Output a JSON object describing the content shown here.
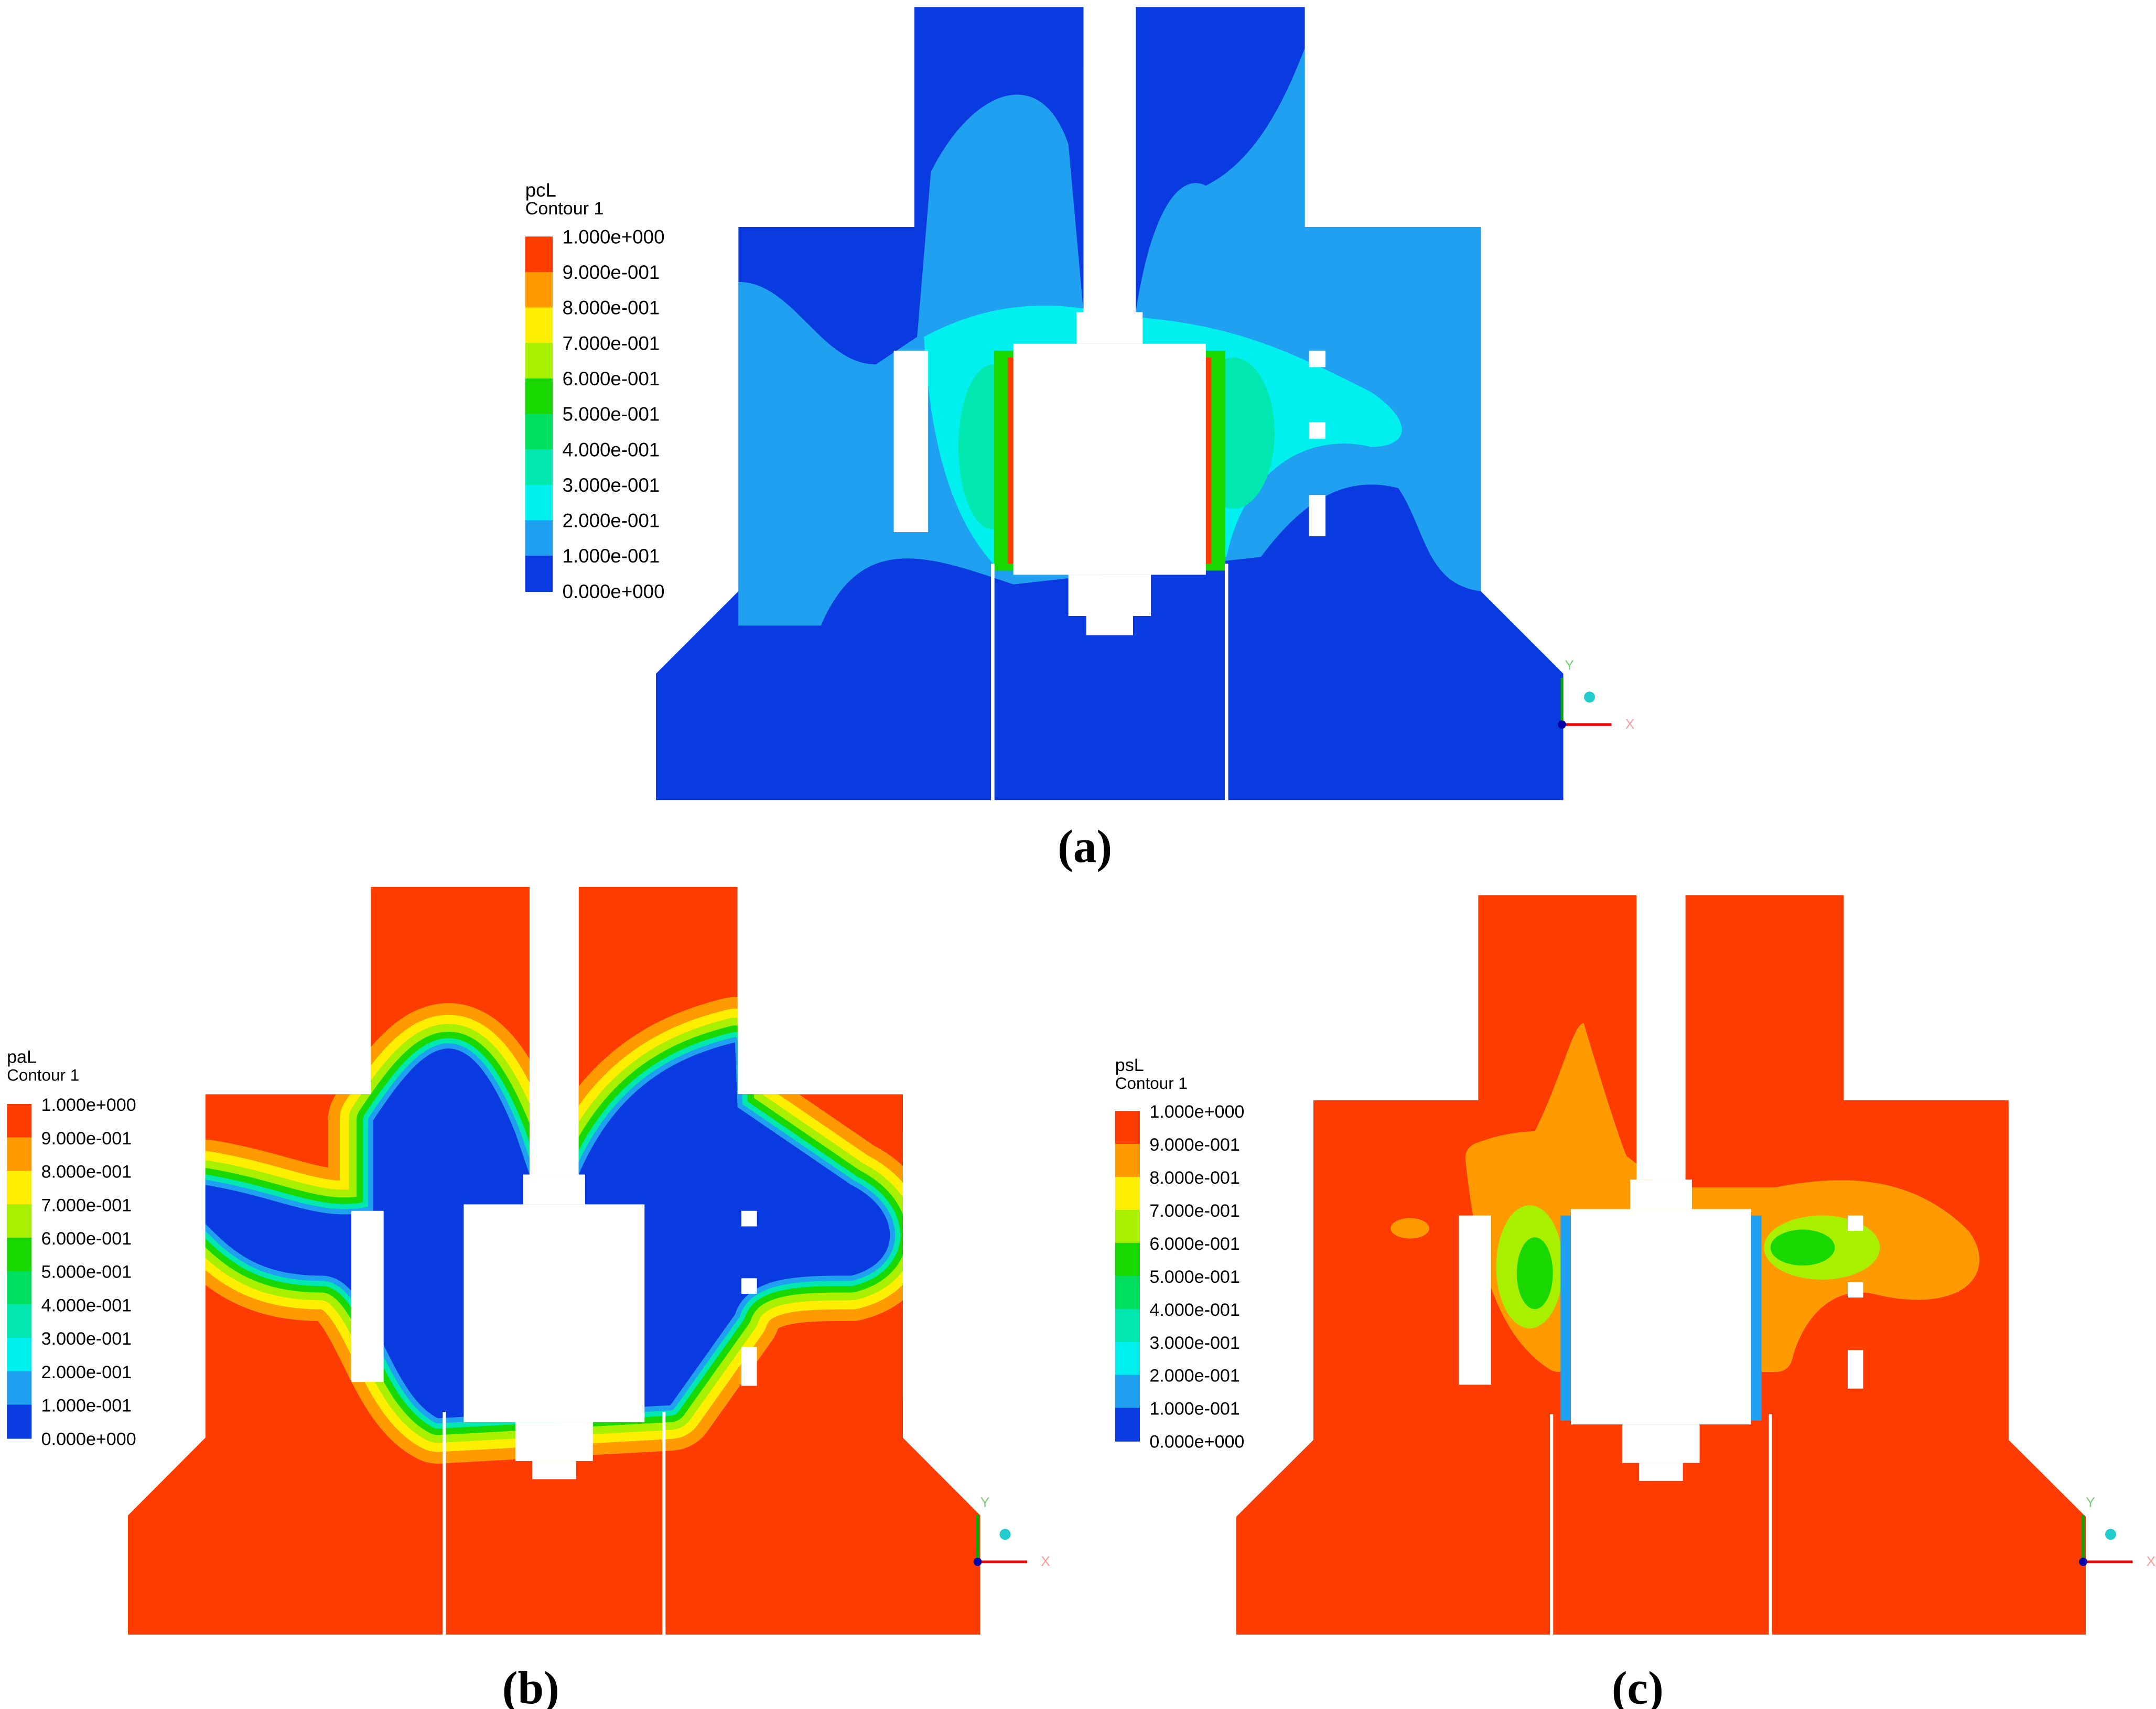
{
  "panels": [
    {
      "label": "(a)",
      "legend": {
        "variable": "pcL",
        "name": "Contour 1",
        "levels": [
          "1.000e+000",
          "9.000e-001",
          "8.000e-001",
          "7.000e-001",
          "6.000e-001",
          "5.000e-001",
          "4.000e-001",
          "3.000e-001",
          "2.000e-001",
          "1.000e-001",
          "0.000e+000"
        ]
      },
      "axes": {
        "x": "X",
        "y": "Y"
      }
    },
    {
      "label": "(b)",
      "legend": {
        "variable": "paL",
        "name": "Contour 1",
        "levels": [
          "1.000e+000",
          "9.000e-001",
          "8.000e-001",
          "7.000e-001",
          "6.000e-001",
          "5.000e-001",
          "4.000e-001",
          "3.000e-001",
          "2.000e-001",
          "1.000e-001",
          "0.000e+000"
        ]
      },
      "axes": {
        "x": "X",
        "y": "Y"
      }
    },
    {
      "label": "(c)",
      "legend": {
        "variable": "psL",
        "name": "Contour 1",
        "levels": [
          "1.000e+000",
          "9.000e-001",
          "8.000e-001",
          "7.000e-001",
          "6.000e-001",
          "5.000e-001",
          "4.000e-001",
          "3.000e-001",
          "2.000e-001",
          "1.000e-001",
          "0.000e+000"
        ]
      },
      "axes": {
        "x": "X",
        "y": "Y"
      }
    }
  ]
}
